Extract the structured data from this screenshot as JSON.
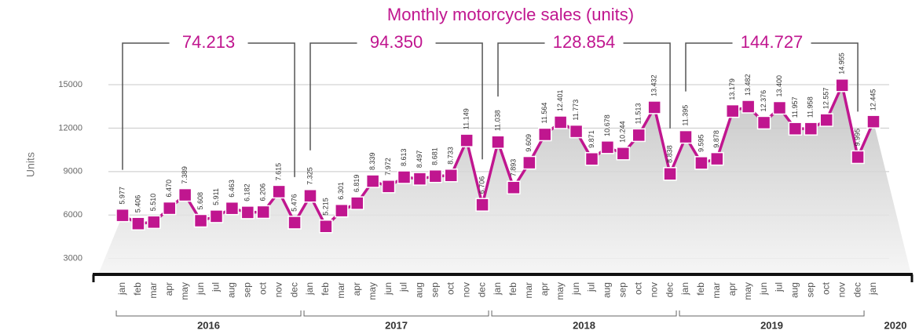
{
  "chart_data": {
    "type": "line",
    "title": "Monthly motorcycle sales (units)",
    "y_label": "Units",
    "categories": [
      "jan",
      "feb",
      "mar",
      "apr",
      "may",
      "jun",
      "jul",
      "aug",
      "sep",
      "oct",
      "nov",
      "dec",
      "jan",
      "feb",
      "mar",
      "apr",
      "may",
      "jun",
      "jul",
      "aug",
      "sep",
      "oct",
      "nov",
      "dec",
      "jan",
      "feb",
      "mar",
      "apr",
      "may",
      "jun",
      "jul",
      "aug",
      "sep",
      "oct",
      "nov",
      "dec",
      "jan",
      "feb",
      "mar",
      "apr",
      "may",
      "jun",
      "jul",
      "aug",
      "sep",
      "oct",
      "nov",
      "dec",
      "jan"
    ],
    "years": [
      "2016",
      "2017",
      "2018",
      "2019",
      "2020"
    ],
    "values": [
      5977,
      5406,
      5510,
      6470,
      7389,
      5608,
      5911,
      6463,
      6182,
      6206,
      7615,
      5476,
      7325,
      5215,
      6301,
      6819,
      8339,
      7972,
      8613,
      8497,
      8681,
      8733,
      11149,
      6706,
      11038,
      7893,
      9609,
      11564,
      12401,
      11773,
      9871,
      10678,
      10244,
      11513,
      13432,
      8838,
      11395,
      9595,
      9878,
      13179,
      13482,
      12376,
      13400,
      11957,
      11958,
      12557,
      14955,
      9995,
      12445
    ],
    "value_labels": [
      "5.977",
      "5.406",
      "5.510",
      "6.470",
      "7.389",
      "5.608",
      "5.911",
      "6.463",
      "6.182",
      "6.206",
      "7.615",
      "5.476",
      "7.325",
      "5.215",
      "6.301",
      "6.819",
      "8.339",
      "7.972",
      "8.613",
      "8.497",
      "8.681",
      "8.733",
      "11.149",
      "6.706",
      "11.038",
      "7.893",
      "9.609",
      "11.564",
      "12.401",
      "11.773",
      "9.871",
      "10.678",
      "10.244",
      "11.513",
      "13.432",
      "8.838",
      "11.395",
      "9.595",
      "9.878",
      "13.179",
      "13.482",
      "12.376",
      "13.400",
      "11.957",
      "11.958",
      "12.557",
      "14.955",
      "9.995",
      "12.445"
    ],
    "year_totals": [
      {
        "value": 74213,
        "label": "74.213"
      },
      {
        "value": 94350,
        "label": "94.350"
      },
      {
        "value": 128854,
        "label": "128.854"
      },
      {
        "value": 144727,
        "label": "144.727"
      }
    ],
    "color": "#c0168f",
    "ylim": [
      1900,
      17000
    ],
    "yticks": [
      3000,
      6000,
      9000,
      12000,
      15000
    ],
    "grid": true
  }
}
